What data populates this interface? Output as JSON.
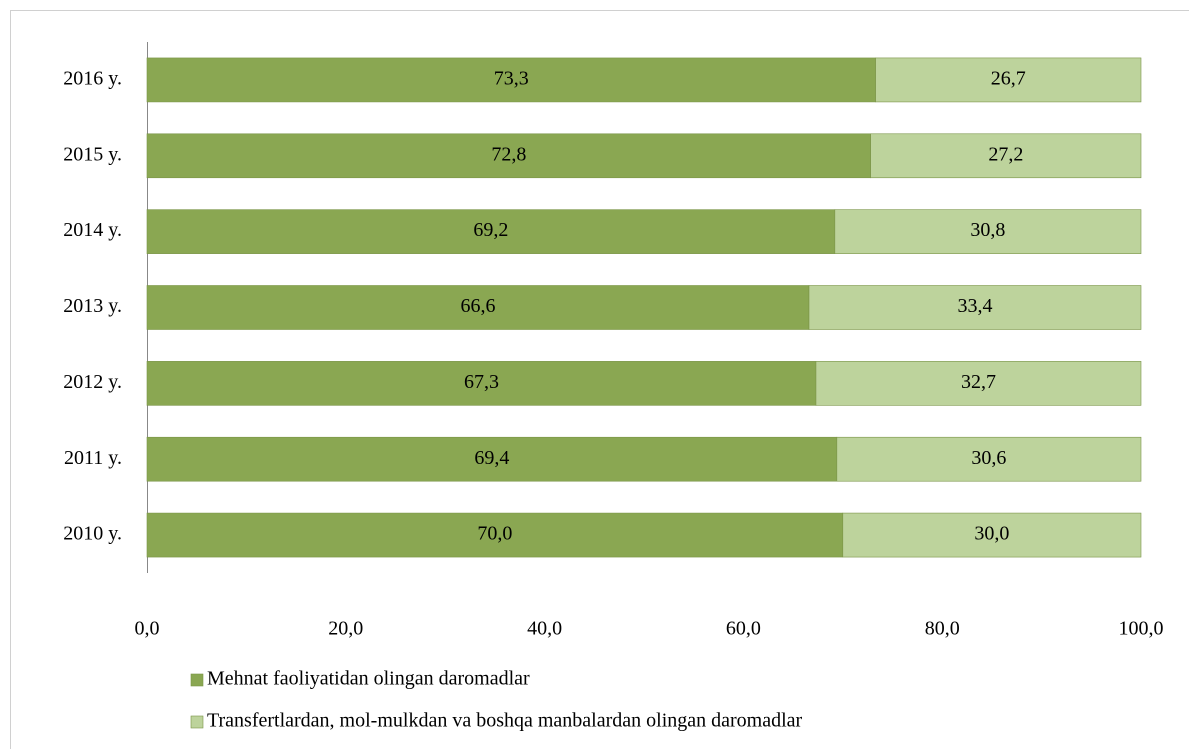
{
  "chart_data": {
    "type": "stacked-barh",
    "categories": [
      "2010 y.",
      "2011 y.",
      "2012 y.",
      "2013 y.",
      "2014 y.",
      "2015 y.",
      "2016 y."
    ],
    "series": [
      {
        "name": "Mehnat faoliyatidan olingan daromadlar",
        "color": "#8aa752",
        "values": [
          70.0,
          69.4,
          67.3,
          66.6,
          69.2,
          72.8,
          73.3
        ],
        "value_labels": [
          "70,0",
          "69,4",
          "67,3",
          "66,6",
          "69,2",
          "72,8",
          "73,3"
        ]
      },
      {
        "name": "Transfertlardan, mol-mulkdan va boshqa manbalardan olingan daromadlar",
        "color": "#bdd39c",
        "values": [
          30.0,
          30.6,
          32.7,
          33.4,
          30.8,
          27.2,
          26.7
        ],
        "value_labels": [
          "30,0",
          "30,6",
          "32,7",
          "33,4",
          "30,8",
          "27,2",
          "26,7"
        ]
      }
    ],
    "xlim": [
      0,
      100
    ],
    "xticks": [
      {
        "value": 0,
        "label": "0,0"
      },
      {
        "value": 20,
        "label": "20,0"
      },
      {
        "value": 40,
        "label": "40,0"
      },
      {
        "value": 60,
        "label": "60,0"
      },
      {
        "value": 80,
        "label": "80,0"
      },
      {
        "value": 100,
        "label": "100,0"
      }
    ],
    "legend": "bottom"
  }
}
